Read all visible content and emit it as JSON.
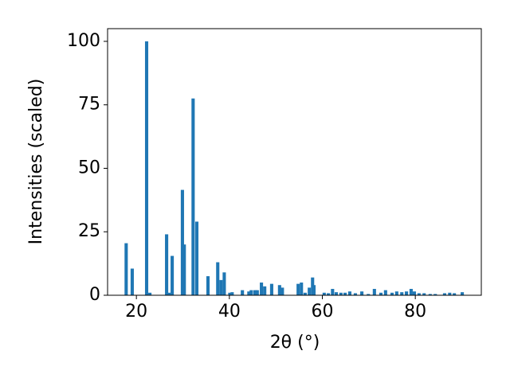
{
  "chart_data": {
    "type": "bar",
    "x_label": "2θ (°)",
    "y_label": "Intensities (scaled)",
    "color": "#1f77b4",
    "x": [
      17.8,
      19.1,
      22.2,
      22.9,
      26.5,
      27.0,
      27.7,
      29.9,
      30.3,
      32.2,
      33.0,
      35.4,
      37.5,
      38.2,
      38.9,
      40.1,
      40.6,
      42.8,
      44.2,
      44.7,
      45.5,
      46.0,
      46.9,
      47.6,
      49.1,
      50.8,
      51.4,
      54.8,
      55.5,
      56.3,
      57.2,
      57.9,
      58.2,
      60.4,
      61.3,
      62.2,
      63.0,
      64.0,
      64.9,
      65.9,
      67.1,
      68.5,
      69.9,
      71.2,
      72.6,
      73.6,
      75.0,
      76.0,
      77.1,
      78.1,
      79.1,
      79.8,
      80.8,
      81.9,
      83.2,
      84.3,
      86.3,
      87.4,
      88.4,
      90.1
    ],
    "values": [
      20.5,
      10.5,
      100,
      1,
      24,
      1,
      15.5,
      41.5,
      20,
      77.5,
      29,
      7.5,
      13,
      6,
      9,
      1,
      1.2,
      2,
      1.5,
      2,
      2,
      2,
      5,
      3.5,
      4.5,
      4,
      3,
      4.5,
      5,
      1,
      3,
      7,
      4,
      1,
      0.8,
      2.5,
      1.2,
      1,
      1,
      1.5,
      0.8,
      1.5,
      0.5,
      2.5,
      1,
      2,
      1,
      1.5,
      1.2,
      1.5,
      2.5,
      1.5,
      0.8,
      0.8,
      0.5,
      0.5,
      0.8,
      1,
      0.8,
      1.2
    ],
    "xlim": [
      13.8,
      94.2
    ],
    "xticks": [
      20,
      40,
      60,
      80
    ],
    "ylim": [
      0,
      105
    ],
    "yticks": [
      0,
      25,
      50,
      75,
      100
    ]
  }
}
